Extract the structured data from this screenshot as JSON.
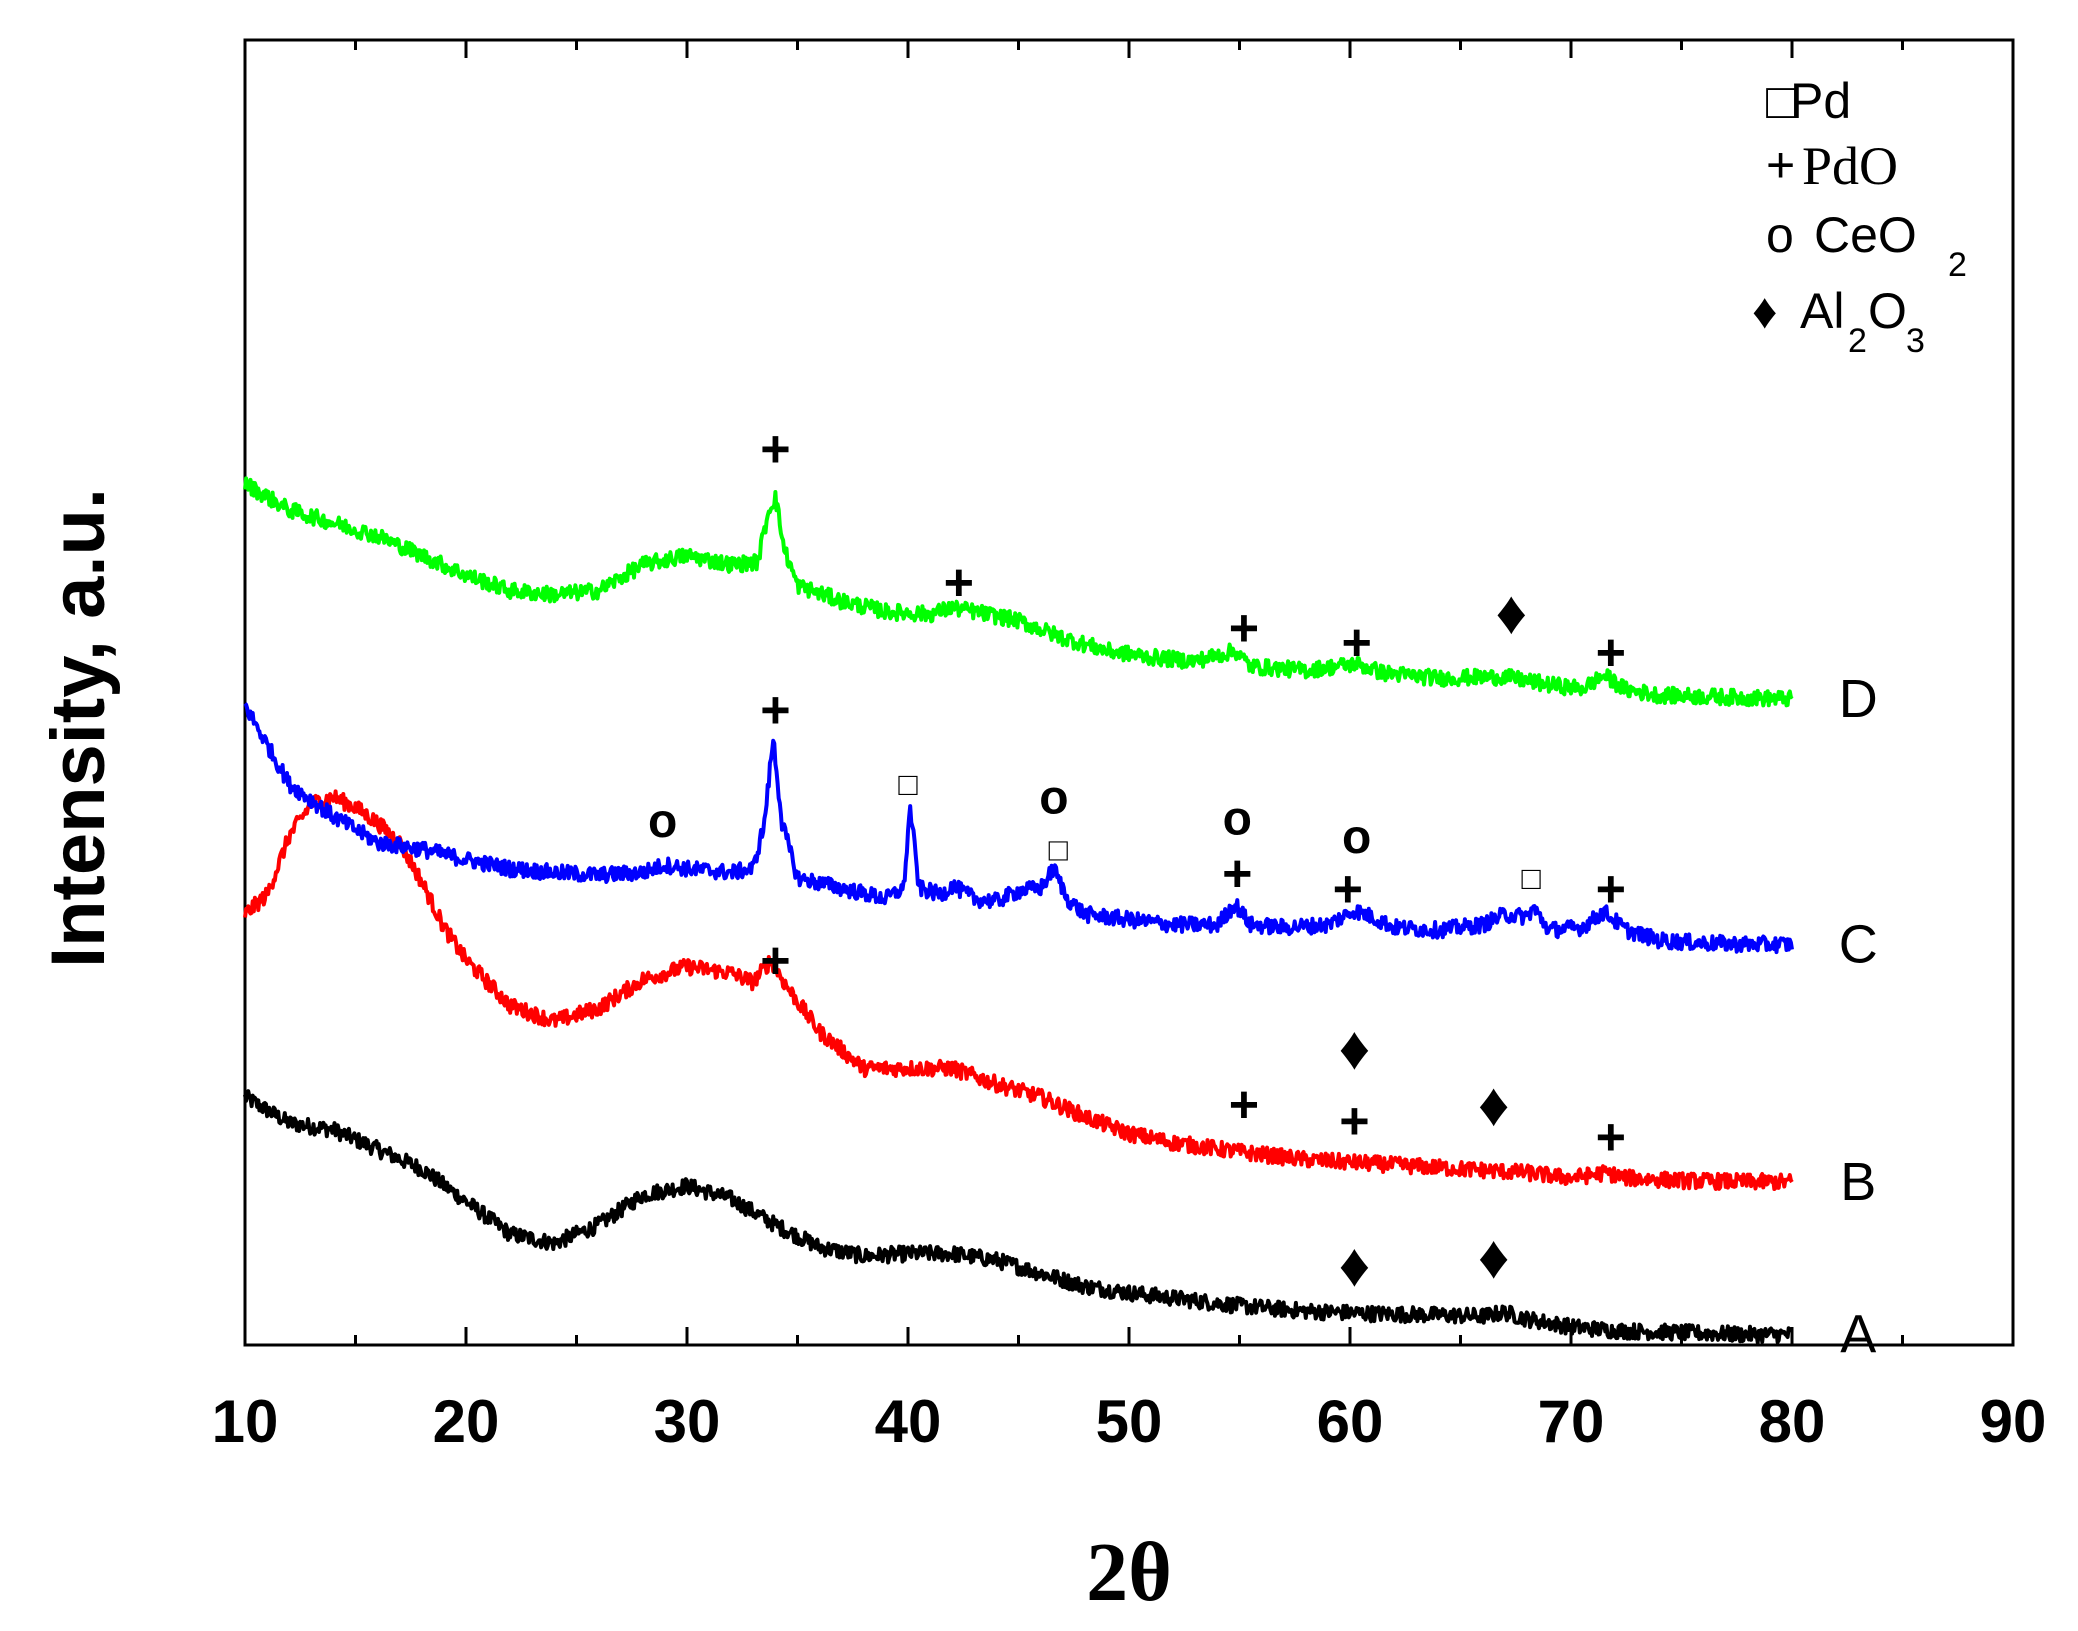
{
  "chart_data": {
    "type": "line",
    "title": "",
    "xlabel": "2θ",
    "ylabel": "Intensity, a.u.",
    "xlim": [
      10,
      90
    ],
    "ylim": [
      0,
      10
    ],
    "x_ticks": [
      "10",
      "20",
      "30",
      "40",
      "50",
      "60",
      "70",
      "80",
      "90"
    ],
    "grid": false,
    "legend": {
      "placement": "top-right",
      "entries": [
        {
          "symbol": "□",
          "name": "Pd",
          "sub": ""
        },
        {
          "symbol": "+",
          "name": "PdO",
          "sub": ""
        },
        {
          "symbol": "o",
          "name": "CeO",
          "sub": "2"
        },
        {
          "symbol": "♦",
          "name": "Al",
          "sub": "2",
          "name2": "O",
          "sub2": "3"
        }
      ]
    },
    "series": [
      {
        "name": "A",
        "color": "#000000",
        "points": [
          [
            10,
            1.9
          ],
          [
            12,
            1.7
          ],
          [
            14,
            1.65
          ],
          [
            16,
            1.5
          ],
          [
            18,
            1.35
          ],
          [
            20,
            1.1
          ],
          [
            22,
            0.85
          ],
          [
            24,
            0.78
          ],
          [
            26,
            0.92
          ],
          [
            28,
            1.15
          ],
          [
            30,
            1.22
          ],
          [
            32,
            1.12
          ],
          [
            34,
            0.92
          ],
          [
            36,
            0.75
          ],
          [
            38,
            0.68
          ],
          [
            40,
            0.7
          ],
          [
            42,
            0.7
          ],
          [
            44,
            0.65
          ],
          [
            46,
            0.55
          ],
          [
            48,
            0.45
          ],
          [
            50,
            0.4
          ],
          [
            52,
            0.36
          ],
          [
            55,
            0.3
          ],
          [
            58,
            0.26
          ],
          [
            61,
            0.24
          ],
          [
            64,
            0.23
          ],
          [
            66,
            0.22
          ],
          [
            67,
            0.25
          ],
          [
            68,
            0.2
          ],
          [
            70,
            0.14
          ],
          [
            72,
            0.11
          ],
          [
            74,
            0.1
          ],
          [
            76,
            0.09
          ],
          [
            78,
            0.08
          ],
          [
            80,
            0.08
          ]
        ],
        "markers": [
          {
            "x": 60.2,
            "y": 0.62,
            "sym": "♦"
          },
          {
            "x": 66.5,
            "y": 0.68,
            "sym": "♦"
          }
        ]
      },
      {
        "name": "B",
        "color": "#ff0000",
        "points": [
          [
            10,
            3.3
          ],
          [
            11,
            3.45
          ],
          [
            12,
            3.9
          ],
          [
            13,
            4.15
          ],
          [
            14,
            4.2
          ],
          [
            15,
            4.12
          ],
          [
            16,
            4.0
          ],
          [
            17,
            3.85
          ],
          [
            18,
            3.55
          ],
          [
            19,
            3.2
          ],
          [
            20,
            2.95
          ],
          [
            22,
            2.6
          ],
          [
            24,
            2.48
          ],
          [
            26,
            2.58
          ],
          [
            28,
            2.8
          ],
          [
            30,
            2.9
          ],
          [
            32,
            2.85
          ],
          [
            33,
            2.78
          ],
          [
            33.8,
            2.95
          ],
          [
            34.5,
            2.75
          ],
          [
            36,
            2.4
          ],
          [
            38,
            2.12
          ],
          [
            40,
            2.12
          ],
          [
            42,
            2.12
          ],
          [
            44,
            2.0
          ],
          [
            46,
            1.9
          ],
          [
            48,
            1.75
          ],
          [
            50,
            1.62
          ],
          [
            52,
            1.55
          ],
          [
            55,
            1.48
          ],
          [
            58,
            1.42
          ],
          [
            60,
            1.4
          ],
          [
            62,
            1.38
          ],
          [
            65,
            1.35
          ],
          [
            68,
            1.32
          ],
          [
            70,
            1.28
          ],
          [
            71.6,
            1.32
          ],
          [
            72.5,
            1.28
          ],
          [
            75,
            1.26
          ],
          [
            78,
            1.25
          ],
          [
            80,
            1.25
          ]
        ],
        "markers": [
          {
            "x": 34.0,
            "y": 2.95,
            "sym": "+"
          },
          {
            "x": 60.2,
            "y": 2.28,
            "sym": "♦"
          },
          {
            "x": 55.2,
            "y": 1.85,
            "sym": "+"
          },
          {
            "x": 60.2,
            "y": 1.72,
            "sym": "+"
          },
          {
            "x": 66.5,
            "y": 1.85,
            "sym": "♦"
          },
          {
            "x": 71.8,
            "y": 1.6,
            "sym": "+"
          }
        ]
      },
      {
        "name": "C",
        "color": "#0000ff",
        "points": [
          [
            10,
            4.9
          ],
          [
            11,
            4.6
          ],
          [
            12,
            4.3
          ],
          [
            14,
            4.05
          ],
          [
            16,
            3.85
          ],
          [
            18,
            3.8
          ],
          [
            20,
            3.72
          ],
          [
            22,
            3.65
          ],
          [
            24,
            3.62
          ],
          [
            26,
            3.6
          ],
          [
            28,
            3.62
          ],
          [
            29,
            3.68
          ],
          [
            30,
            3.65
          ],
          [
            32,
            3.62
          ],
          [
            33,
            3.65
          ],
          [
            33.5,
            4.0
          ],
          [
            33.9,
            4.65
          ],
          [
            34.3,
            4.0
          ],
          [
            35,
            3.58
          ],
          [
            37,
            3.5
          ],
          [
            39,
            3.42
          ],
          [
            39.8,
            3.5
          ],
          [
            40.1,
            4.12
          ],
          [
            40.5,
            3.5
          ],
          [
            41.5,
            3.45
          ],
          [
            42,
            3.52
          ],
          [
            43,
            3.42
          ],
          [
            44,
            3.4
          ],
          [
            45,
            3.48
          ],
          [
            46,
            3.5
          ],
          [
            46.6,
            3.65
          ],
          [
            47.2,
            3.42
          ],
          [
            48,
            3.3
          ],
          [
            50,
            3.26
          ],
          [
            52,
            3.22
          ],
          [
            54,
            3.22
          ],
          [
            54.8,
            3.38
          ],
          [
            55.5,
            3.22
          ],
          [
            57,
            3.2
          ],
          [
            59,
            3.22
          ],
          [
            60.2,
            3.33
          ],
          [
            61,
            3.28
          ],
          [
            62,
            3.2
          ],
          [
            64,
            3.18
          ],
          [
            66,
            3.22
          ],
          [
            67,
            3.3
          ],
          [
            68,
            3.28
          ],
          [
            68.3,
            3.35
          ],
          [
            69,
            3.18
          ],
          [
            70.5,
            3.2
          ],
          [
            71.5,
            3.32
          ],
          [
            72.5,
            3.18
          ],
          [
            74,
            3.1
          ],
          [
            76,
            3.08
          ],
          [
            78,
            3.07
          ],
          [
            80,
            3.07
          ]
        ],
        "markers": [
          {
            "x": 34.0,
            "y": 4.87,
            "sym": "+"
          },
          {
            "x": 28.9,
            "y": 4.02,
            "sym": "o"
          },
          {
            "x": 40.0,
            "y": 4.3,
            "sym": "□"
          },
          {
            "x": 46.6,
            "y": 4.2,
            "sym": "o"
          },
          {
            "x": 46.8,
            "y": 3.8,
            "sym": "□"
          },
          {
            "x": 54.9,
            "y": 4.04,
            "sym": "o"
          },
          {
            "x": 54.9,
            "y": 3.62,
            "sym": "+"
          },
          {
            "x": 60.3,
            "y": 3.9,
            "sym": "o"
          },
          {
            "x": 59.9,
            "y": 3.5,
            "sym": "+"
          },
          {
            "x": 68.2,
            "y": 3.58,
            "sym": "□"
          },
          {
            "x": 71.8,
            "y": 3.5,
            "sym": "+"
          }
        ]
      },
      {
        "name": "D",
        "color": "#00ff00",
        "points": [
          [
            10,
            6.6
          ],
          [
            12,
            6.4
          ],
          [
            14,
            6.3
          ],
          [
            16,
            6.2
          ],
          [
            18,
            6.05
          ],
          [
            20,
            5.9
          ],
          [
            22,
            5.78
          ],
          [
            24,
            5.75
          ],
          [
            26,
            5.78
          ],
          [
            28,
            5.98
          ],
          [
            30,
            6.05
          ],
          [
            32,
            5.98
          ],
          [
            33.2,
            6.0
          ],
          [
            33.7,
            6.4
          ],
          [
            34.0,
            6.5
          ],
          [
            34.4,
            6.1
          ],
          [
            35,
            5.82
          ],
          [
            37,
            5.7
          ],
          [
            39,
            5.62
          ],
          [
            41,
            5.6
          ],
          [
            42,
            5.65
          ],
          [
            43,
            5.62
          ],
          [
            45,
            5.55
          ],
          [
            47,
            5.42
          ],
          [
            49,
            5.32
          ],
          [
            51,
            5.27
          ],
          [
            53,
            5.24
          ],
          [
            54.8,
            5.32
          ],
          [
            55.5,
            5.2
          ],
          [
            58,
            5.17
          ],
          [
            60.3,
            5.22
          ],
          [
            61.5,
            5.15
          ],
          [
            64,
            5.11
          ],
          [
            67,
            5.12
          ],
          [
            69,
            5.06
          ],
          [
            70.5,
            5.03
          ],
          [
            71.5,
            5.13
          ],
          [
            72.5,
            5.02
          ],
          [
            74,
            4.98
          ],
          [
            76,
            4.97
          ],
          [
            78,
            4.96
          ],
          [
            80,
            4.95
          ]
        ],
        "markers": [
          {
            "x": 34.0,
            "y": 6.87,
            "sym": "+"
          },
          {
            "x": 42.3,
            "y": 5.85,
            "sym": "+"
          },
          {
            "x": 67.3,
            "y": 5.62,
            "sym": "♦"
          },
          {
            "x": 55.2,
            "y": 5.5,
            "sym": "+"
          },
          {
            "x": 60.3,
            "y": 5.39,
            "sym": "+"
          },
          {
            "x": 71.8,
            "y": 5.31,
            "sym": "+"
          }
        ]
      }
    ]
  }
}
